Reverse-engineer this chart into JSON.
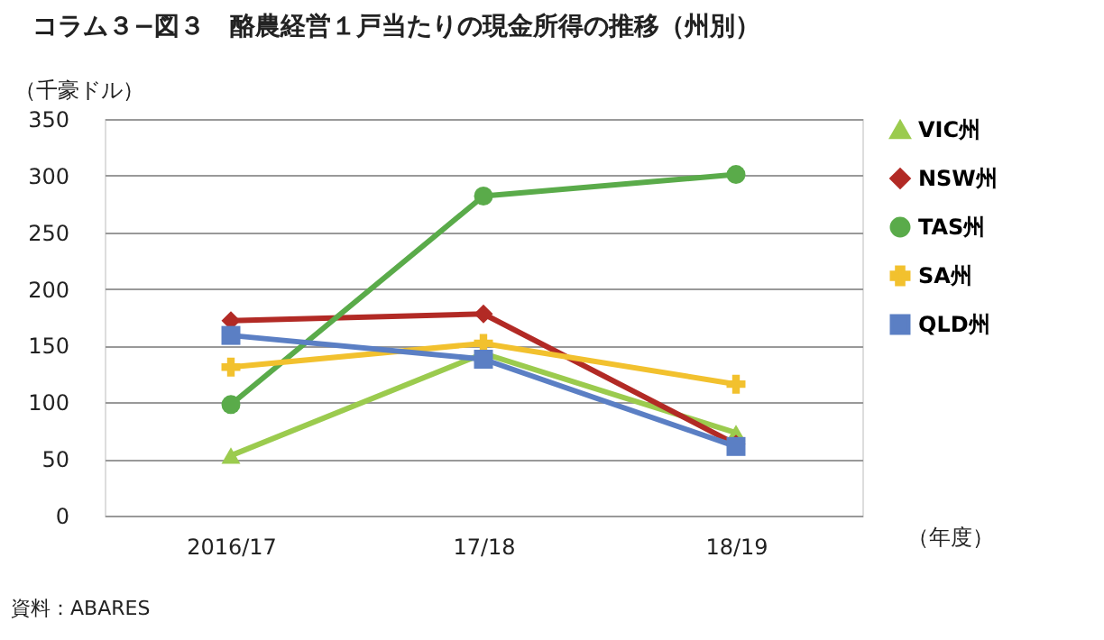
{
  "chart_data": {
    "type": "line",
    "title": "コラム３−図３　酪農経営１戸当たりの現金所得の推移（州別）",
    "ylabel": "（千豪ドル）",
    "xlabel": "（年度）",
    "categories": [
      "2016/17",
      "17/18",
      "18/19"
    ],
    "series": [
      {
        "name": "VIC州",
        "color": "#9bcb4e",
        "marker": "triangle",
        "values": [
          53,
          143,
          73
        ]
      },
      {
        "name": "NSW州",
        "color": "#b22a25",
        "marker": "diamond",
        "values": [
          172,
          178,
          63
        ]
      },
      {
        "name": "TAS州",
        "color": "#5aab4a",
        "marker": "circle",
        "values": [
          98,
          282,
          301
        ]
      },
      {
        "name": "SA州",
        "color": "#f2c12e",
        "marker": "cross",
        "values": [
          131,
          152,
          116
        ]
      },
      {
        "name": "QLD州",
        "color": "#5b7fc4",
        "marker": "square",
        "values": [
          159,
          138,
          61
        ]
      }
    ],
    "ylim": [
      0,
      350
    ],
    "yticks": [
      0,
      50,
      100,
      150,
      200,
      250,
      300,
      350
    ],
    "grid": "y",
    "legend": "right",
    "line_style": "solid",
    "annotations": [
      "資料：ABARES"
    ]
  }
}
